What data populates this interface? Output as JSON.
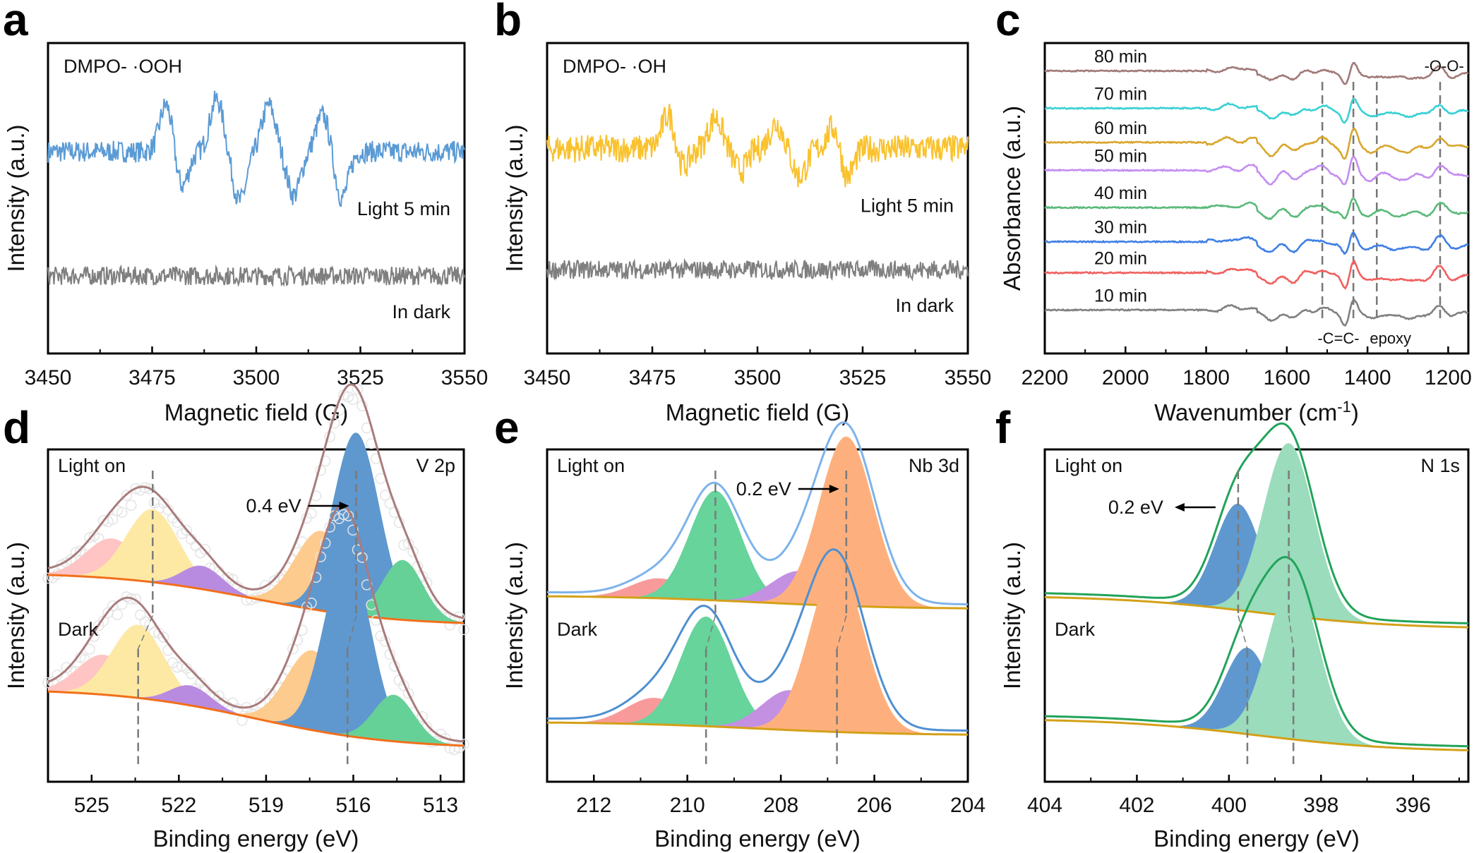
{
  "figure": {
    "panels": [
      "a",
      "b",
      "c",
      "d",
      "e",
      "f"
    ]
  },
  "chart_data": [
    {
      "id": "a",
      "type": "line",
      "panel_letter": "a",
      "title": "DMPO- ·OOH",
      "xlabel": "Magnetic field (G)",
      "ylabel": "Intensity (a.u.)",
      "xlim": [
        3450,
        3550
      ],
      "x_ticks": [
        3450,
        3475,
        3500,
        3525,
        3550
      ],
      "x_tick_labels": [
        "3450",
        "3475",
        "3500",
        "3525",
        "3550"
      ],
      "y_ticks": [],
      "series": [
        {
          "name": "Light 5 min",
          "color": "#5b9bd5",
          "offset": 0.65,
          "noise": 0.035,
          "features": [
            {
              "x": 3478.5,
              "dy": 0.16
            },
            {
              "x": 3482,
              "dy": -0.12
            },
            {
              "x": 3490.5,
              "dy": 0.17
            },
            {
              "x": 3496,
              "dy": -0.16
            },
            {
              "x": 3503,
              "dy": 0.15
            },
            {
              "x": 3509,
              "dy": -0.14
            },
            {
              "x": 3516,
              "dy": 0.12
            },
            {
              "x": 3520.5,
              "dy": -0.15
            }
          ],
          "label": "Light 5 min"
        },
        {
          "name": "In dark",
          "color": "#7f7f7f",
          "offset": 0.25,
          "noise": 0.03,
          "features": [],
          "label": "In dark"
        }
      ]
    },
    {
      "id": "b",
      "type": "line",
      "panel_letter": "b",
      "title": "DMPO- ·OH",
      "xlabel": "Magnetic field (G)",
      "ylabel": "Intensity (a.u.)",
      "xlim": [
        3450,
        3550
      ],
      "x_ticks": [
        3450,
        3475,
        3500,
        3525,
        3550
      ],
      "x_tick_labels": [
        "3450",
        "3475",
        "3500",
        "3525",
        "3550"
      ],
      "series": [
        {
          "name": "Light 5 min",
          "color": "#f9c22e",
          "offset": 0.66,
          "noise": 0.045,
          "features": [
            {
              "x": 3479,
              "dy": 0.12
            },
            {
              "x": 3482,
              "dy": -0.07
            },
            {
              "x": 3490,
              "dy": 0.1
            },
            {
              "x": 3496,
              "dy": -0.07
            },
            {
              "x": 3504.5,
              "dy": 0.08
            },
            {
              "x": 3510,
              "dy": -0.09
            },
            {
              "x": 3518.5,
              "dy": 0.09
            },
            {
              "x": 3521,
              "dy": -0.11
            }
          ],
          "label": "Light 5 min"
        },
        {
          "name": "In dark",
          "color": "#7f7f7f",
          "offset": 0.27,
          "noise": 0.03,
          "features": [],
          "label": "In dark"
        }
      ]
    },
    {
      "id": "c",
      "type": "line",
      "panel_letter": "c",
      "xlabel": "Wavenumber (cm",
      "xlabel_sup": "-1",
      "xlabel_end": ")",
      "ylabel": "Absorbance (a.u.)",
      "xlim": [
        2200,
        1150
      ],
      "x_ticks": [
        2200,
        2000,
        1800,
        1600,
        1400,
        1200
      ],
      "x_tick_labels": [
        "2200",
        "2000",
        "1800",
        "1600",
        "1400",
        "1200"
      ],
      "dashed_lines": [
        1512,
        1435,
        1377,
        1220
      ],
      "band_labels": [
        {
          "text": "-C=C-",
          "x": 1472
        },
        {
          "text": "epoxy",
          "x": 1343
        },
        {
          "text": "-O-O-",
          "x": 1210
        }
      ],
      "series": [
        {
          "name": "10 min",
          "color": "#808080",
          "offset": 0.14
        },
        {
          "name": "20 min",
          "color": "#f0605e",
          "offset": 0.26
        },
        {
          "name": "30 min",
          "color": "#3f7fe6",
          "offset": 0.36
        },
        {
          "name": "40 min",
          "color": "#5bb97a",
          "offset": 0.47
        },
        {
          "name": "50 min",
          "color": "#c48ef0",
          "offset": 0.59
        },
        {
          "name": "60 min",
          "color": "#d9a62e",
          "offset": 0.68
        },
        {
          "name": "70 min",
          "color": "#39d0d4",
          "offset": 0.79
        },
        {
          "name": "80 min",
          "color": "#a07a78",
          "offset": 0.91
        }
      ],
      "spectral_features": [
        {
          "x": 1745,
          "dy": 0.01
        },
        {
          "x": 1690,
          "dy": 0.012
        },
        {
          "x": 1640,
          "dy": -0.025
        },
        {
          "x": 1605,
          "dy": 0.01
        },
        {
          "x": 1585,
          "dy": -0.02
        },
        {
          "x": 1550,
          "dy": 0.012
        },
        {
          "x": 1512,
          "dy": 0.02
        },
        {
          "x": 1455,
          "dy": -0.035
        },
        {
          "x": 1435,
          "dy": 0.05
        },
        {
          "x": 1395,
          "dy": -0.015
        },
        {
          "x": 1330,
          "dy": -0.01
        },
        {
          "x": 1300,
          "dy": -0.012
        },
        {
          "x": 1250,
          "dy": -0.012
        },
        {
          "x": 1220,
          "dy": 0.03
        },
        {
          "x": 1195,
          "dy": -0.008
        }
      ]
    },
    {
      "id": "d",
      "type": "area",
      "panel_letter": "d",
      "xlabel": "Binding energy (eV)",
      "ylabel": "Intensity (a.u.)",
      "xlim": [
        526.5,
        512.2
      ],
      "x_ticks": [
        525,
        522,
        519,
        516,
        513
      ],
      "x_tick_labels": [
        "525",
        "522",
        "519",
        "516",
        "513"
      ],
      "label_topleft": "Light on",
      "label_topright": "V 2p",
      "label_dark": "Dark",
      "shift_label": "0.4 eV",
      "shift_direction": "right",
      "envelope_color": "#a97c7c",
      "baseline_color": "#f26f1a",
      "components_light": [
        {
          "center": 524.3,
          "width": 0.9,
          "amp": 0.12,
          "color": "#ffc4c4"
        },
        {
          "center": 522.9,
          "width": 0.9,
          "amp": 0.22,
          "color": "#fde9a4"
        },
        {
          "center": 521.2,
          "width": 0.7,
          "amp": 0.07,
          "color": "#b98be0"
        },
        {
          "center": 517.1,
          "width": 0.9,
          "amp": 0.24,
          "color": "#fdcb8e"
        },
        {
          "center": 515.9,
          "width": 0.8,
          "amp": 0.55,
          "color": "#5f98cf"
        },
        {
          "center": 514.3,
          "width": 0.7,
          "amp": 0.18,
          "color": "#66d197"
        }
      ],
      "components_dark": [
        {
          "center": 524.6,
          "width": 0.9,
          "amp": 0.12,
          "color": "#ffc4c4"
        },
        {
          "center": 523.4,
          "width": 0.9,
          "amp": 0.22,
          "color": "#fde9a4"
        },
        {
          "center": 521.6,
          "width": 0.7,
          "amp": 0.06,
          "color": "#b98be0"
        },
        {
          "center": 517.4,
          "width": 0.9,
          "amp": 0.24,
          "color": "#fdcb8e"
        },
        {
          "center": 516.2,
          "width": 0.8,
          "amp": 0.55,
          "color": "#5f98cf"
        },
        {
          "center": 514.6,
          "width": 0.7,
          "amp": 0.14,
          "color": "#66d197"
        }
      ],
      "peak_lines_light": [
        522.9,
        515.9
      ],
      "peak_lines_dark": [
        523.4,
        516.2
      ],
      "baseline_light": {
        "left": 0.63,
        "right": 0.47
      },
      "baseline_dark": {
        "left": 0.28,
        "right": 0.1
      }
    },
    {
      "id": "e",
      "type": "area",
      "panel_letter": "e",
      "xlabel": "Binding energy (eV)",
      "ylabel": "Intensity (a.u.)",
      "xlim": [
        213,
        204
      ],
      "x_ticks": [
        212,
        210,
        208,
        206,
        204
      ],
      "x_tick_labels": [
        "212",
        "210",
        "208",
        "206",
        "204"
      ],
      "label_topleft": "Light on",
      "label_topright": "Nb 3d",
      "label_dark": "Dark",
      "shift_label": "0.2 eV",
      "shift_direction": "right",
      "envelope_color_light": "#7eb3ea",
      "envelope_color_dark": "#4f8fd0",
      "baseline_color": "#d4a017",
      "components_light": [
        {
          "center": 210.6,
          "width": 0.6,
          "amp": 0.06,
          "color": "#f99a9a"
        },
        {
          "center": 209.4,
          "width": 0.55,
          "amp": 0.33,
          "color": "#66d49b"
        },
        {
          "center": 207.6,
          "width": 0.6,
          "amp": 0.1,
          "color": "#c390e2"
        },
        {
          "center": 206.6,
          "width": 0.58,
          "amp": 0.51,
          "color": "#fdb07e"
        }
      ],
      "components_dark": [
        {
          "center": 210.7,
          "width": 0.6,
          "amp": 0.08,
          "color": "#f99a9a"
        },
        {
          "center": 209.6,
          "width": 0.55,
          "amp": 0.33,
          "color": "#66d49b"
        },
        {
          "center": 207.8,
          "width": 0.6,
          "amp": 0.12,
          "color": "#c390e2"
        },
        {
          "center": 206.8,
          "width": 0.58,
          "amp": 0.5,
          "color": "#fdb07e"
        }
      ],
      "peak_lines_light": [
        209.4,
        206.6
      ],
      "peak_lines_dark": [
        209.6,
        206.8
      ],
      "baseline_light": {
        "left": 0.56,
        "right": 0.52
      },
      "baseline_dark": {
        "left": 0.18,
        "right": 0.14
      }
    },
    {
      "id": "f",
      "type": "area",
      "panel_letter": "f",
      "xlabel": "Binding energy (eV)",
      "ylabel": "Intensity (a.u.)",
      "xlim": [
        404,
        394.8
      ],
      "x_ticks": [
        404,
        402,
        400,
        398,
        396
      ],
      "x_tick_labels": [
        "404",
        "402",
        "400",
        "398",
        "396"
      ],
      "label_topleft": "Light on",
      "label_topright": "N 1s",
      "label_dark": "Dark",
      "shift_label": "0.2 eV",
      "shift_direction": "left",
      "envelope_color": "#22a35a",
      "baseline_color": "#d4a017",
      "components_light": [
        {
          "center": 399.8,
          "width": 0.5,
          "amp": 0.32,
          "color": "#5f98cf"
        },
        {
          "center": 398.7,
          "width": 0.55,
          "amp": 0.52,
          "color": "#9adcbc"
        }
      ],
      "components_dark": [
        {
          "center": 399.6,
          "width": 0.5,
          "amp": 0.26,
          "color": "#5f98cf"
        },
        {
          "center": 398.6,
          "width": 0.55,
          "amp": 0.48,
          "color": "#9adcbc"
        }
      ],
      "peak_lines_light": [
        399.8,
        398.7
      ],
      "peak_lines_dark": [
        399.6,
        398.6
      ],
      "baseline_light": {
        "left": 0.56,
        "right": 0.46
      },
      "baseline_dark": {
        "left": 0.19,
        "right": 0.09
      }
    }
  ]
}
